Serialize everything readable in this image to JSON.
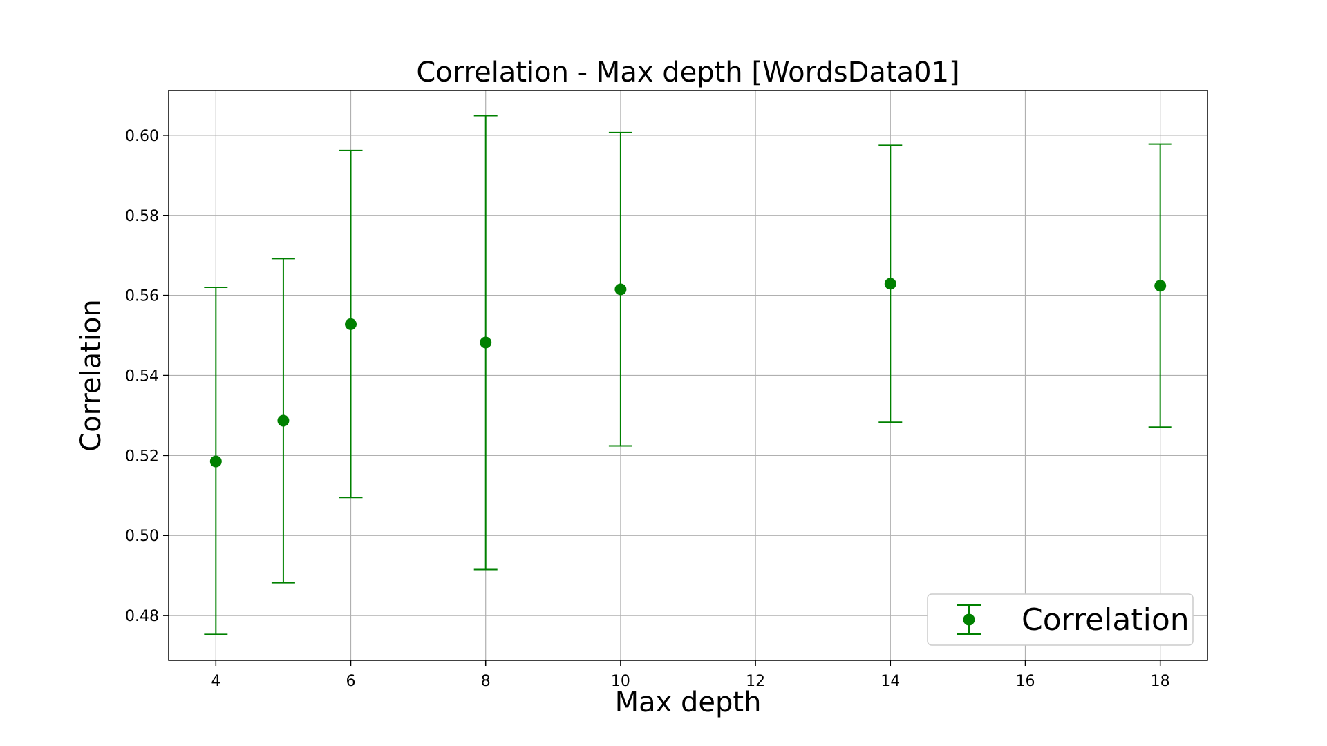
{
  "chart_data": {
    "type": "scatter",
    "title": "Correlation - Max depth  [WordsData01]",
    "xlabel": "Max depth",
    "ylabel": "Correlation",
    "xlim": [
      3.3,
      18.7
    ],
    "ylim": [
      0.4688,
      0.6112
    ],
    "x_ticks": [
      4,
      6,
      8,
      10,
      12,
      14,
      16,
      18
    ],
    "x_tick_labels": [
      "4",
      "6",
      "8",
      "10",
      "12",
      "14",
      "16",
      "18"
    ],
    "y_ticks": [
      0.48,
      0.5,
      0.52,
      0.54,
      0.56,
      0.58,
      0.6
    ],
    "y_tick_labels": [
      "0.48",
      "0.50",
      "0.52",
      "0.54",
      "0.56",
      "0.58",
      "0.60"
    ],
    "grid": true,
    "legend_position": "bottom-right",
    "color": "#008000",
    "series": [
      {
        "name": "Correlation",
        "x": [
          4,
          5,
          6,
          8,
          10,
          14,
          18
        ],
        "y": [
          0.5185,
          0.5287,
          0.5528,
          0.5482,
          0.5615,
          0.5629,
          0.5624
        ],
        "yerr_low": [
          0.4753,
          0.4882,
          0.5095,
          0.4915,
          0.5224,
          0.5283,
          0.5271
        ],
        "yerr_high": [
          0.562,
          0.5692,
          0.5962,
          0.6049,
          0.6007,
          0.5975,
          0.5978
        ]
      }
    ]
  }
}
